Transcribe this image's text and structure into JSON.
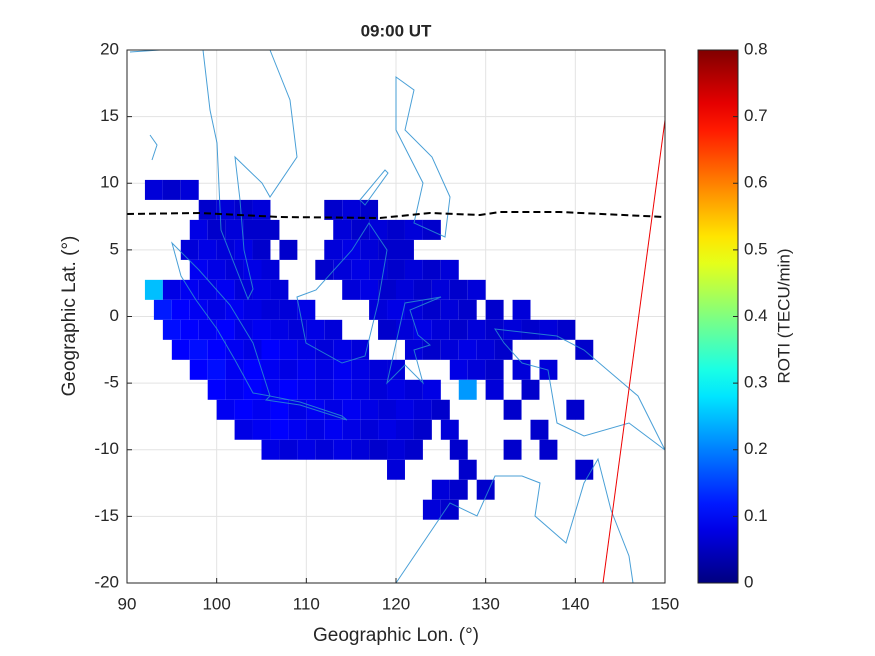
{
  "chart_data": {
    "type": "heatmap",
    "title": "09:00 UT",
    "xlabel": "Geographic Lon. (°)",
    "ylabel": "Geographic Lat. (°)",
    "xlim": [
      90,
      150
    ],
    "xticks": [
      90,
      100,
      110,
      120,
      130,
      140,
      150
    ],
    "ylim": [
      -20,
      20
    ],
    "yticks": [
      -20,
      -15,
      -10,
      -5,
      0,
      5,
      10,
      15,
      20
    ],
    "grid": true,
    "colorbar": {
      "label": "ROTI (TECU/min)",
      "lim": [
        0,
        0.8
      ],
      "ticks": [
        0,
        0.1,
        0.2,
        0.3,
        0.4,
        0.5,
        0.6,
        0.7,
        0.8
      ],
      "colormap": "jet"
    },
    "points": [
      [
        93,
        9.5,
        0.07
      ],
      [
        95,
        9.5,
        0.06
      ],
      [
        97,
        9.5,
        0.07
      ],
      [
        99,
        8,
        0.06
      ],
      [
        101,
        8,
        0.07
      ],
      [
        103,
        8,
        0.06
      ],
      [
        105,
        8,
        0.07
      ],
      [
        113,
        8,
        0.06
      ],
      [
        115,
        8,
        0.07
      ],
      [
        117,
        8,
        0.06
      ],
      [
        98,
        6.5,
        0.08
      ],
      [
        100,
        6.5,
        0.06
      ],
      [
        102,
        6.5,
        0.07
      ],
      [
        104,
        6.5,
        0.06
      ],
      [
        106,
        6.5,
        0.06
      ],
      [
        114,
        6.5,
        0.07
      ],
      [
        116,
        6.5,
        0.06
      ],
      [
        118,
        6.5,
        0.07
      ],
      [
        120,
        6.5,
        0.06
      ],
      [
        122,
        6.5,
        0.07
      ],
      [
        124,
        6.5,
        0.06
      ],
      [
        97,
        5,
        0.07
      ],
      [
        99,
        5,
        0.08
      ],
      [
        101,
        5,
        0.07
      ],
      [
        103,
        5,
        0.08
      ],
      [
        105,
        5,
        0.06
      ],
      [
        108,
        5,
        0.06
      ],
      [
        113,
        5,
        0.07
      ],
      [
        115,
        5,
        0.08
      ],
      [
        117,
        5,
        0.07
      ],
      [
        119,
        5,
        0.06
      ],
      [
        121,
        5,
        0.06
      ],
      [
        98,
        3.5,
        0.09
      ],
      [
        100,
        3.5,
        0.08
      ],
      [
        102,
        3.5,
        0.07
      ],
      [
        104,
        3.5,
        0.08
      ],
      [
        106,
        3.5,
        0.07
      ],
      [
        112,
        3.5,
        0.06
      ],
      [
        114,
        3.5,
        0.07
      ],
      [
        116,
        3.5,
        0.08
      ],
      [
        118,
        3.5,
        0.07
      ],
      [
        120,
        3.5,
        0.06
      ],
      [
        122,
        3.5,
        0.07
      ],
      [
        124,
        3.5,
        0.06
      ],
      [
        126,
        3.5,
        0.07
      ],
      [
        93,
        2,
        0.25
      ],
      [
        95,
        2,
        0.08
      ],
      [
        97,
        2,
        0.09
      ],
      [
        99,
        2,
        0.08
      ],
      [
        101,
        2,
        0.09
      ],
      [
        103,
        2,
        0.07
      ],
      [
        105,
        2,
        0.08
      ],
      [
        107,
        2,
        0.07
      ],
      [
        115,
        2,
        0.07
      ],
      [
        117,
        2,
        0.08
      ],
      [
        119,
        2,
        0.06
      ],
      [
        121,
        2,
        0.07
      ],
      [
        123,
        2,
        0.06
      ],
      [
        125,
        2,
        0.07
      ],
      [
        127,
        2,
        0.06
      ],
      [
        129,
        2,
        0.07
      ],
      [
        94,
        0.5,
        0.12
      ],
      [
        96,
        0.5,
        0.1
      ],
      [
        98,
        0.5,
        0.09
      ],
      [
        100,
        0.5,
        0.08
      ],
      [
        102,
        0.5,
        0.09
      ],
      [
        104,
        0.5,
        0.08
      ],
      [
        106,
        0.5,
        0.07
      ],
      [
        108,
        0.5,
        0.07
      ],
      [
        110,
        0.5,
        0.08
      ],
      [
        118,
        0.5,
        0.07
      ],
      [
        120,
        0.5,
        0.08
      ],
      [
        122,
        0.5,
        0.07
      ],
      [
        124,
        0.5,
        0.06
      ],
      [
        126,
        0.5,
        0.07
      ],
      [
        128,
        0.5,
        0.06
      ],
      [
        131,
        0.5,
        0.06
      ],
      [
        134,
        0.5,
        0.07
      ],
      [
        95,
        -1,
        0.11
      ],
      [
        97,
        -1,
        0.1
      ],
      [
        99,
        -1,
        0.09
      ],
      [
        101,
        -1,
        0.1
      ],
      [
        103,
        -1,
        0.08
      ],
      [
        105,
        -1,
        0.09
      ],
      [
        107,
        -1,
        0.08
      ],
      [
        109,
        -1,
        0.07
      ],
      [
        111,
        -1,
        0.08
      ],
      [
        113,
        -1,
        0.07
      ],
      [
        119,
        -1,
        0.06
      ],
      [
        121,
        -1,
        0.07
      ],
      [
        123,
        -1,
        0.08
      ],
      [
        125,
        -1,
        0.07
      ],
      [
        127,
        -1,
        0.06
      ],
      [
        129,
        -1,
        0.07
      ],
      [
        131,
        -1,
        0.06
      ],
      [
        133,
        -1,
        0.07
      ],
      [
        135,
        -1,
        0.06
      ],
      [
        137,
        -1,
        0.07
      ],
      [
        139,
        -1,
        0.06
      ],
      [
        96,
        -2.5,
        0.1
      ],
      [
        98,
        -2.5,
        0.11
      ],
      [
        100,
        -2.5,
        0.1
      ],
      [
        102,
        -2.5,
        0.09
      ],
      [
        104,
        -2.5,
        0.08
      ],
      [
        106,
        -2.5,
        0.1
      ],
      [
        108,
        -2.5,
        0.09
      ],
      [
        110,
        -2.5,
        0.08
      ],
      [
        112,
        -2.5,
        0.07
      ],
      [
        114,
        -2.5,
        0.08
      ],
      [
        116,
        -2.5,
        0.07
      ],
      [
        122,
        -2.5,
        0.07
      ],
      [
        124,
        -2.5,
        0.06
      ],
      [
        126,
        -2.5,
        0.07
      ],
      [
        128,
        -2.5,
        0.08
      ],
      [
        130,
        -2.5,
        0.07
      ],
      [
        132,
        -2.5,
        0.06
      ],
      [
        141,
        -2.5,
        0.06
      ],
      [
        98,
        -4,
        0.1
      ],
      [
        100,
        -4,
        0.11
      ],
      [
        102,
        -4,
        0.09
      ],
      [
        104,
        -4,
        0.1
      ],
      [
        106,
        -4,
        0.09
      ],
      [
        108,
        -4,
        0.08
      ],
      [
        110,
        -4,
        0.09
      ],
      [
        112,
        -4,
        0.08
      ],
      [
        114,
        -4,
        0.09
      ],
      [
        116,
        -4,
        0.08
      ],
      [
        118,
        -4,
        0.07
      ],
      [
        120,
        -4,
        0.07
      ],
      [
        127,
        -4,
        0.08
      ],
      [
        129,
        -4,
        0.07
      ],
      [
        131,
        -4,
        0.06
      ],
      [
        134,
        -4,
        0.07
      ],
      [
        137,
        -4,
        0.07
      ],
      [
        100,
        -5.5,
        0.1
      ],
      [
        102,
        -5.5,
        0.09
      ],
      [
        104,
        -5.5,
        0.1
      ],
      [
        106,
        -5.5,
        0.09
      ],
      [
        108,
        -5.5,
        0.1
      ],
      [
        110,
        -5.5,
        0.09
      ],
      [
        112,
        -5.5,
        0.08
      ],
      [
        114,
        -5.5,
        0.09
      ],
      [
        116,
        -5.5,
        0.08
      ],
      [
        118,
        -5.5,
        0.07
      ],
      [
        120,
        -5.5,
        0.08
      ],
      [
        122,
        -5.5,
        0.07
      ],
      [
        124,
        -5.5,
        0.08
      ],
      [
        128,
        -5.5,
        0.22
      ],
      [
        131,
        -5.5,
        0.07
      ],
      [
        135,
        -5.5,
        0.06
      ],
      [
        101,
        -7,
        0.09
      ],
      [
        103,
        -7,
        0.1
      ],
      [
        105,
        -7,
        0.09
      ],
      [
        107,
        -7,
        0.1
      ],
      [
        109,
        -7,
        0.08
      ],
      [
        111,
        -7,
        0.09
      ],
      [
        113,
        -7,
        0.08
      ],
      [
        115,
        -7,
        0.09
      ],
      [
        117,
        -7,
        0.08
      ],
      [
        119,
        -7,
        0.07
      ],
      [
        121,
        -7,
        0.08
      ],
      [
        123,
        -7,
        0.07
      ],
      [
        125,
        -7,
        0.06
      ],
      [
        133,
        -7,
        0.06
      ],
      [
        140,
        -7,
        0.06
      ],
      [
        103,
        -8.5,
        0.08
      ],
      [
        105,
        -8.5,
        0.09
      ],
      [
        107,
        -8.5,
        0.1
      ],
      [
        109,
        -8.5,
        0.09
      ],
      [
        111,
        -8.5,
        0.08
      ],
      [
        113,
        -8.5,
        0.09
      ],
      [
        115,
        -8.5,
        0.08
      ],
      [
        117,
        -8.5,
        0.07
      ],
      [
        119,
        -8.5,
        0.08
      ],
      [
        121,
        -8.5,
        0.07
      ],
      [
        123,
        -8.5,
        0.06
      ],
      [
        126,
        -8.5,
        0.07
      ],
      [
        136,
        -8.5,
        0.06
      ],
      [
        106,
        -10,
        0.08
      ],
      [
        108,
        -10,
        0.07
      ],
      [
        110,
        -10,
        0.08
      ],
      [
        112,
        -10,
        0.07
      ],
      [
        114,
        -10,
        0.08
      ],
      [
        116,
        -10,
        0.07
      ],
      [
        118,
        -10,
        0.06
      ],
      [
        120,
        -10,
        0.07
      ],
      [
        122,
        -10,
        0.06
      ],
      [
        127,
        -10,
        0.06
      ],
      [
        133,
        -10,
        0.06
      ],
      [
        137,
        -10,
        0.06
      ],
      [
        120,
        -11.5,
        0.07
      ],
      [
        128,
        -11.5,
        0.06
      ],
      [
        141,
        -11.5,
        0.06
      ],
      [
        125,
        -13,
        0.07
      ],
      [
        127,
        -13,
        0.06
      ],
      [
        130,
        -13,
        0.06
      ],
      [
        124,
        -14.5,
        0.07
      ],
      [
        126,
        -14.5,
        0.06
      ]
    ]
  }
}
